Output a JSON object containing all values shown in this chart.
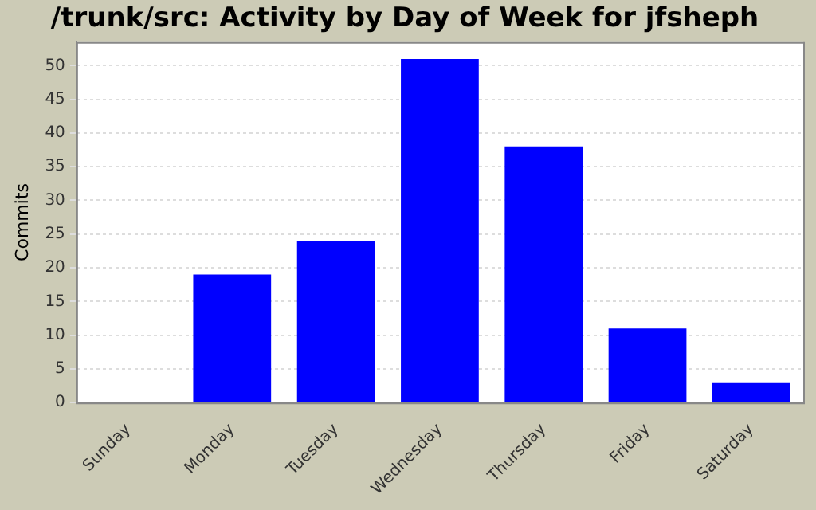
{
  "chart_data": {
    "type": "bar",
    "title": "/trunk/src: Activity by Day of Week for jfsheph",
    "ylabel": "Commits",
    "categories": [
      "Sunday",
      "Monday",
      "Tuesday",
      "Wednesday",
      "Thursday",
      "Friday",
      "Saturday"
    ],
    "values": [
      0,
      19,
      24,
      51,
      38,
      11,
      3
    ],
    "color": "#0000ff",
    "ylim": [
      0,
      53.5
    ],
    "yticks": [
      0,
      5,
      10,
      15,
      20,
      25,
      30,
      35,
      40,
      45,
      50
    ],
    "grid": "y",
    "legend": false
  }
}
